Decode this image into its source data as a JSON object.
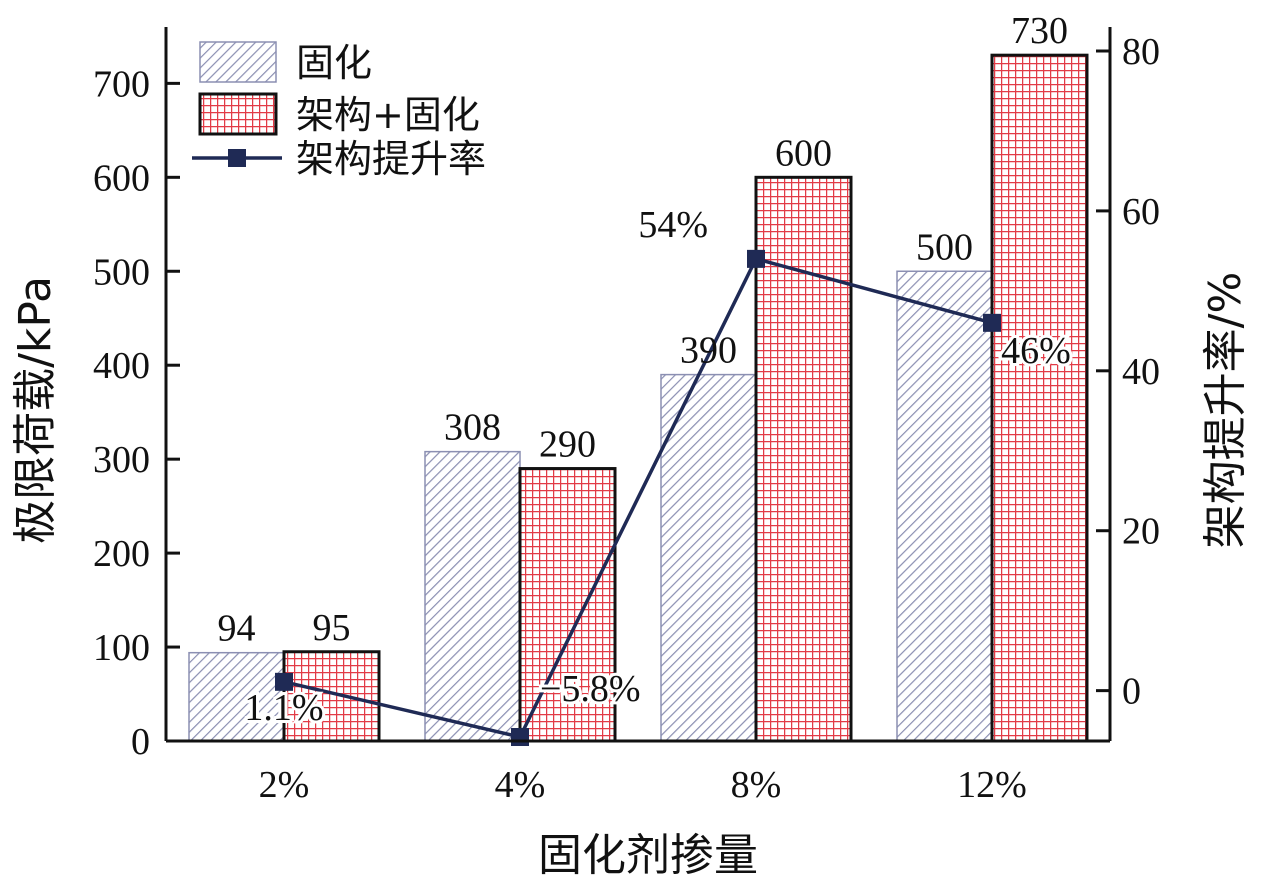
{
  "chart_data": {
    "type": "bar",
    "xlabel": "固化剂掺量",
    "ylabel": "极限荷载/kPa",
    "y2label": "架构提升率/%",
    "categories": [
      "2%",
      "4%",
      "8%",
      "12%"
    ],
    "ylim": [
      0,
      760
    ],
    "yticks": [
      0,
      100,
      200,
      300,
      400,
      500,
      600,
      700
    ],
    "y2lim": [
      -6.3,
      83
    ],
    "y2ticks": [
      0,
      20,
      40,
      60,
      80
    ],
    "series": [
      {
        "name": "固化",
        "kind": "bar",
        "axis": "left",
        "values": [
          94,
          308,
          390,
          500
        ],
        "labels": [
          "94",
          "308",
          "390",
          "500"
        ],
        "pattern": "diagonal-hatch",
        "color": "#8b8fb2"
      },
      {
        "name": "架构+固化",
        "kind": "bar",
        "axis": "left",
        "values": [
          95,
          290,
          600,
          730
        ],
        "labels": [
          "95",
          "290",
          "600",
          "730"
        ],
        "pattern": "grid-hatch",
        "color": "#e23b46"
      },
      {
        "name": "架构提升率",
        "kind": "line",
        "axis": "right",
        "values": [
          1.1,
          -5.8,
          54,
          46
        ],
        "labels": [
          "1.1%",
          "−5.8%",
          "54%",
          "46%"
        ],
        "color": "#1f2a55"
      }
    ],
    "legend": "top-left",
    "grid": false
  }
}
